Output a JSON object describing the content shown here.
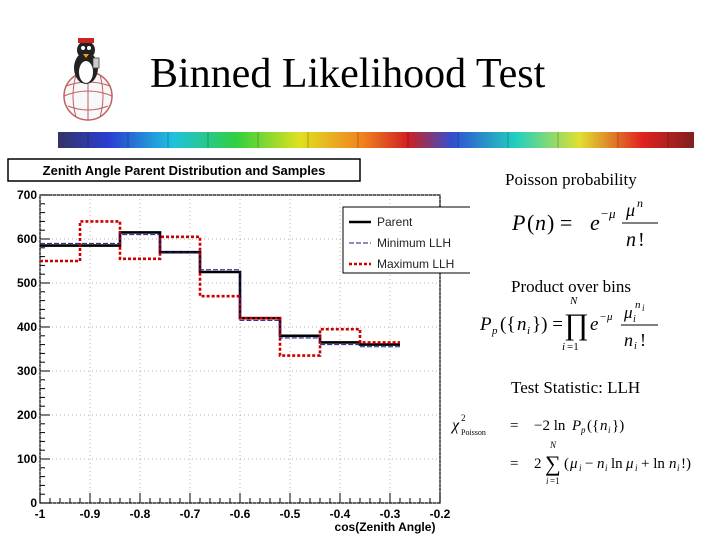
{
  "slide": {
    "title": "Binned Likelihood Test",
    "poisson_label": "Poisson probability",
    "product_label": "Product over bins",
    "statistic_label": "Test Statistic: LLH"
  },
  "colors": {
    "parent": "#000000",
    "minimum_llh": "#1a1a8c",
    "maximum_llh": "#cc0000"
  },
  "chart_data": {
    "type": "line",
    "title": "Zenith Angle Parent Distribution and Samples",
    "xlabel": "cos(Zenith Angle)",
    "ylabel": "",
    "xlim": [
      -1,
      -0.2
    ],
    "ylim": [
      0,
      700
    ],
    "x_ticks": [
      "-1",
      "-0.9",
      "-0.8",
      "-0.7",
      "-0.6",
      "-0.5",
      "-0.4",
      "-0.3",
      "-0.2"
    ],
    "y_ticks": [
      "0",
      "100",
      "200",
      "300",
      "400",
      "500",
      "600",
      "700"
    ],
    "bin_edges": [
      -1,
      -0.92,
      -0.84,
      -0.76,
      -0.68,
      -0.6,
      -0.52,
      -0.44,
      -0.36,
      -0.28
    ],
    "legend_position": "top-right",
    "series": [
      {
        "name": "Parent",
        "style": "solid",
        "values": [
          585,
          585,
          615,
          570,
          525,
          420,
          380,
          365,
          360
        ]
      },
      {
        "name": "Minimum LLH",
        "style": "dashed",
        "values": [
          590,
          590,
          610,
          570,
          530,
          415,
          375,
          360,
          355
        ]
      },
      {
        "name": "Maximum LLH",
        "style": "dotted",
        "values": [
          550,
          640,
          555,
          605,
          470,
          420,
          335,
          395,
          365
        ]
      }
    ]
  }
}
